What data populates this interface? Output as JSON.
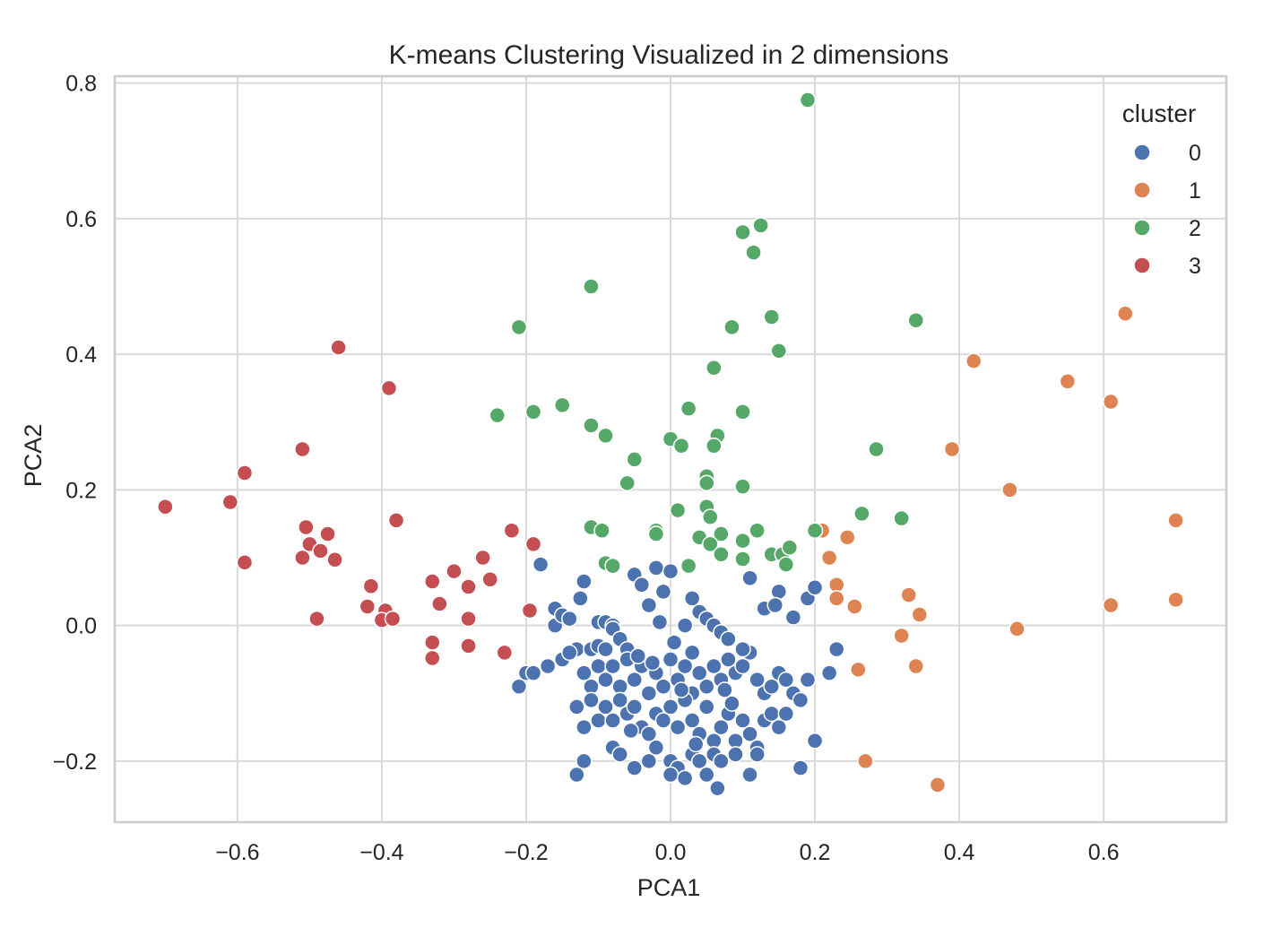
{
  "chart_data": {
    "type": "scatter",
    "title": "K-means Clustering Visualized in 2 dimensions",
    "xlabel": "PCA1",
    "ylabel": "PCA2",
    "xlim": [
      -0.77,
      0.77
    ],
    "ylim": [
      -0.29,
      0.81
    ],
    "x_ticks": [
      -0.6,
      -0.4,
      -0.2,
      0.0,
      0.2,
      0.4,
      0.6
    ],
    "x_tick_labels": [
      "−0.6",
      "−0.4",
      "−0.2",
      "0.0",
      "0.2",
      "0.4",
      "0.6"
    ],
    "y_ticks": [
      -0.2,
      0.0,
      0.2,
      0.4,
      0.6,
      0.8
    ],
    "y_tick_labels": [
      "−0.2",
      "0.0",
      "0.2",
      "0.4",
      "0.6",
      "0.8"
    ],
    "grid": true,
    "legend": {
      "title": "cluster",
      "placement": "top-right",
      "entries": [
        {
          "label": "0",
          "color": "#4C72B0"
        },
        {
          "label": "1",
          "color": "#DD8452"
        },
        {
          "label": "2",
          "color": "#55A868"
        },
        {
          "label": "3",
          "color": "#C44E52"
        }
      ]
    },
    "series": [
      {
        "name": "0",
        "color": "#4C72B0",
        "points": [
          [
            -0.18,
            0.09
          ],
          [
            -0.12,
            0.065
          ],
          [
            -0.125,
            0.04
          ],
          [
            -0.1,
            0.005
          ],
          [
            -0.09,
            0.005
          ],
          [
            -0.08,
            0.0
          ],
          [
            -0.16,
            0.025
          ],
          [
            -0.16,
            0.0
          ],
          [
            -0.15,
            0.015
          ],
          [
            -0.14,
            0.01
          ],
          [
            -0.13,
            -0.035
          ],
          [
            -0.11,
            -0.035
          ],
          [
            -0.1,
            -0.03
          ],
          [
            -0.09,
            -0.035
          ],
          [
            -0.08,
            -0.005
          ],
          [
            -0.07,
            -0.02
          ],
          [
            -0.06,
            -0.035
          ],
          [
            -0.05,
            0.075
          ],
          [
            -0.04,
            0.06
          ],
          [
            -0.03,
            0.03
          ],
          [
            -0.02,
            0.085
          ],
          [
            -0.01,
            0.05
          ],
          [
            0.0,
            0.08
          ],
          [
            0.02,
            0.0
          ],
          [
            0.03,
            0.04
          ],
          [
            0.04,
            0.02
          ],
          [
            0.05,
            0.01
          ],
          [
            0.06,
            0.0
          ],
          [
            0.07,
            -0.01
          ],
          [
            0.08,
            -0.02
          ],
          [
            -0.2,
            -0.07
          ],
          [
            -0.19,
            -0.07
          ],
          [
            -0.21,
            -0.09
          ],
          [
            -0.17,
            -0.06
          ],
          [
            -0.15,
            -0.05
          ],
          [
            -0.14,
            -0.04
          ],
          [
            -0.12,
            -0.07
          ],
          [
            -0.11,
            -0.09
          ],
          [
            -0.1,
            -0.06
          ],
          [
            -0.09,
            -0.08
          ],
          [
            -0.08,
            -0.06
          ],
          [
            -0.07,
            -0.09
          ],
          [
            -0.06,
            -0.05
          ],
          [
            -0.05,
            -0.08
          ],
          [
            -0.04,
            -0.06
          ],
          [
            -0.03,
            -0.1
          ],
          [
            -0.02,
            -0.07
          ],
          [
            -0.01,
            -0.09
          ],
          [
            0.0,
            -0.05
          ],
          [
            0.01,
            -0.08
          ],
          [
            0.02,
            -0.06
          ],
          [
            0.03,
            -0.1
          ],
          [
            0.04,
            -0.07
          ],
          [
            0.05,
            -0.09
          ],
          [
            0.06,
            -0.06
          ],
          [
            0.07,
            -0.08
          ],
          [
            0.08,
            -0.05
          ],
          [
            0.09,
            -0.07
          ],
          [
            0.1,
            -0.06
          ],
          [
            0.11,
            -0.04
          ],
          [
            0.12,
            -0.08
          ],
          [
            0.13,
            -0.1
          ],
          [
            0.14,
            -0.09
          ],
          [
            0.15,
            -0.07
          ],
          [
            0.16,
            -0.08
          ],
          [
            0.17,
            -0.1
          ],
          [
            0.18,
            -0.11
          ],
          [
            0.19,
            -0.08
          ],
          [
            0.22,
            -0.07
          ],
          [
            0.23,
            -0.035
          ],
          [
            -0.13,
            -0.12
          ],
          [
            -0.12,
            -0.15
          ],
          [
            -0.11,
            -0.11
          ],
          [
            -0.1,
            -0.14
          ],
          [
            -0.09,
            -0.12
          ],
          [
            -0.08,
            -0.14
          ],
          [
            -0.07,
            -0.11
          ],
          [
            -0.06,
            -0.13
          ],
          [
            -0.05,
            -0.12
          ],
          [
            -0.04,
            -0.15
          ],
          [
            -0.03,
            -0.16
          ],
          [
            -0.02,
            -0.13
          ],
          [
            -0.01,
            -0.14
          ],
          [
            0.0,
            -0.12
          ],
          [
            0.01,
            -0.15
          ],
          [
            0.02,
            -0.11
          ],
          [
            0.03,
            -0.14
          ],
          [
            0.04,
            -0.16
          ],
          [
            0.05,
            -0.12
          ],
          [
            0.06,
            -0.17
          ],
          [
            0.07,
            -0.15
          ],
          [
            0.08,
            -0.13
          ],
          [
            0.09,
            -0.17
          ],
          [
            0.1,
            -0.14
          ],
          [
            0.11,
            -0.16
          ],
          [
            0.12,
            -0.18
          ],
          [
            0.13,
            -0.14
          ],
          [
            0.14,
            -0.13
          ],
          [
            0.15,
            -0.15
          ],
          [
            0.16,
            -0.13
          ],
          [
            0.2,
            -0.17
          ],
          [
            -0.12,
            -0.2
          ],
          [
            -0.13,
            -0.22
          ],
          [
            -0.08,
            -0.18
          ],
          [
            -0.07,
            -0.19
          ],
          [
            -0.05,
            -0.21
          ],
          [
            -0.03,
            -0.2
          ],
          [
            -0.02,
            -0.18
          ],
          [
            0.0,
            -0.2
          ],
          [
            0.01,
            -0.21
          ],
          [
            0.03,
            -0.19
          ],
          [
            0.04,
            -0.2
          ],
          [
            0.05,
            -0.22
          ],
          [
            0.06,
            -0.19
          ],
          [
            0.07,
            -0.2
          ],
          [
            0.09,
            -0.19
          ],
          [
            0.11,
            -0.22
          ],
          [
            0.12,
            -0.19
          ],
          [
            0.18,
            -0.21
          ],
          [
            0.065,
            -0.24
          ],
          [
            0.0,
            -0.22
          ],
          [
            0.02,
            -0.225
          ],
          [
            0.11,
            0.07
          ],
          [
            0.13,
            0.025
          ],
          [
            0.15,
            0.05
          ],
          [
            0.17,
            0.012
          ],
          [
            0.19,
            0.04
          ],
          [
            0.2,
            0.056
          ],
          [
            0.145,
            0.03
          ],
          [
            0.1,
            -0.035
          ],
          [
            -0.015,
            0.005
          ],
          [
            0.005,
            -0.025
          ],
          [
            0.03,
            -0.04
          ],
          [
            -0.045,
            -0.045
          ],
          [
            0.075,
            -0.095
          ],
          [
            0.085,
            -0.115
          ],
          [
            -0.025,
            -0.055
          ],
          [
            0.015,
            -0.095
          ],
          [
            -0.055,
            -0.155
          ],
          [
            0.035,
            -0.175
          ]
        ]
      },
      {
        "name": "1",
        "color": "#DD8452",
        "points": [
          [
            0.63,
            0.46
          ],
          [
            0.42,
            0.39
          ],
          [
            0.55,
            0.36
          ],
          [
            0.61,
            0.33
          ],
          [
            0.39,
            0.26
          ],
          [
            0.47,
            0.2
          ],
          [
            0.7,
            0.155
          ],
          [
            0.21,
            0.14
          ],
          [
            0.245,
            0.13
          ],
          [
            0.22,
            0.1
          ],
          [
            0.23,
            0.06
          ],
          [
            0.23,
            0.04
          ],
          [
            0.255,
            0.028
          ],
          [
            0.33,
            0.045
          ],
          [
            0.345,
            0.016
          ],
          [
            0.61,
            0.03
          ],
          [
            0.7,
            0.038
          ],
          [
            0.32,
            -0.015
          ],
          [
            0.48,
            -0.005
          ],
          [
            0.26,
            -0.065
          ],
          [
            0.34,
            -0.06
          ],
          [
            0.27,
            -0.2
          ],
          [
            0.37,
            -0.235
          ]
        ]
      },
      {
        "name": "2",
        "color": "#55A868",
        "points": [
          [
            0.19,
            0.775
          ],
          [
            0.1,
            0.58
          ],
          [
            0.125,
            0.59
          ],
          [
            0.115,
            0.55
          ],
          [
            -0.11,
            0.5
          ],
          [
            0.34,
            0.45
          ],
          [
            0.14,
            0.455
          ],
          [
            -0.21,
            0.44
          ],
          [
            0.085,
            0.44
          ],
          [
            0.15,
            0.405
          ],
          [
            0.06,
            0.38
          ],
          [
            -0.15,
            0.325
          ],
          [
            -0.19,
            0.315
          ],
          [
            -0.24,
            0.31
          ],
          [
            0.025,
            0.32
          ],
          [
            0.1,
            0.315
          ],
          [
            -0.11,
            0.295
          ],
          [
            -0.09,
            0.28
          ],
          [
            0.0,
            0.275
          ],
          [
            0.015,
            0.265
          ],
          [
            0.065,
            0.28
          ],
          [
            0.06,
            0.265
          ],
          [
            0.285,
            0.26
          ],
          [
            -0.05,
            0.245
          ],
          [
            0.05,
            0.22
          ],
          [
            0.05,
            0.21
          ],
          [
            -0.06,
            0.21
          ],
          [
            0.1,
            0.205
          ],
          [
            0.05,
            0.175
          ],
          [
            0.01,
            0.17
          ],
          [
            0.265,
            0.165
          ],
          [
            0.32,
            0.158
          ],
          [
            0.055,
            0.16
          ],
          [
            -0.11,
            0.145
          ],
          [
            -0.095,
            0.14
          ],
          [
            -0.02,
            0.14
          ],
          [
            0.07,
            0.135
          ],
          [
            0.12,
            0.14
          ],
          [
            0.2,
            0.14
          ],
          [
            0.04,
            0.13
          ],
          [
            0.055,
            0.12
          ],
          [
            0.1,
            0.125
          ],
          [
            0.14,
            0.105
          ],
          [
            0.155,
            0.105
          ],
          [
            0.165,
            0.115
          ],
          [
            0.07,
            0.105
          ],
          [
            0.1,
            0.098
          ],
          [
            0.16,
            0.09
          ],
          [
            0.025,
            0.088
          ],
          [
            -0.09,
            0.092
          ],
          [
            -0.08,
            0.088
          ],
          [
            -0.02,
            0.135
          ]
        ]
      },
      {
        "name": "3",
        "color": "#C44E52",
        "points": [
          [
            -0.46,
            0.41
          ],
          [
            -0.39,
            0.35
          ],
          [
            -0.51,
            0.26
          ],
          [
            -0.59,
            0.225
          ],
          [
            -0.61,
            0.182
          ],
          [
            -0.7,
            0.175
          ],
          [
            -0.38,
            0.155
          ],
          [
            -0.22,
            0.14
          ],
          [
            -0.505,
            0.145
          ],
          [
            -0.475,
            0.135
          ],
          [
            -0.5,
            0.12
          ],
          [
            -0.485,
            0.11
          ],
          [
            -0.19,
            0.12
          ],
          [
            -0.51,
            0.1
          ],
          [
            -0.465,
            0.097
          ],
          [
            -0.59,
            0.093
          ],
          [
            -0.3,
            0.08
          ],
          [
            -0.26,
            0.1
          ],
          [
            -0.33,
            0.065
          ],
          [
            -0.25,
            0.068
          ],
          [
            -0.28,
            0.057
          ],
          [
            -0.415,
            0.058
          ],
          [
            -0.32,
            0.032
          ],
          [
            -0.42,
            0.028
          ],
          [
            -0.395,
            0.022
          ],
          [
            -0.195,
            0.022
          ],
          [
            -0.49,
            0.01
          ],
          [
            -0.4,
            0.008
          ],
          [
            -0.385,
            0.01
          ],
          [
            -0.28,
            0.01
          ],
          [
            -0.33,
            -0.025
          ],
          [
            -0.28,
            -0.03
          ],
          [
            -0.23,
            -0.04
          ],
          [
            -0.33,
            -0.048
          ]
        ]
      }
    ]
  }
}
